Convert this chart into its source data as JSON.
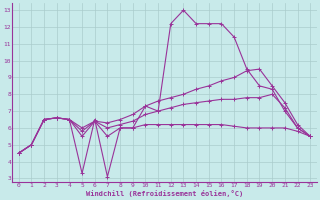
{
  "background_color": "#c8eaea",
  "grid_color": "#aacccc",
  "line_color": "#993399",
  "xlabel": "Windchill (Refroidissement éolien,°C)",
  "xlim": [
    -0.5,
    23.5
  ],
  "ylim": [
    2.8,
    13.4
  ],
  "xticks": [
    0,
    1,
    2,
    3,
    4,
    5,
    6,
    7,
    8,
    9,
    10,
    11,
    12,
    13,
    14,
    15,
    16,
    17,
    18,
    19,
    20,
    21,
    22,
    23
  ],
  "yticks": [
    3,
    4,
    5,
    6,
    7,
    8,
    9,
    10,
    11,
    12,
    13
  ],
  "line1_y": [
    4.5,
    5.0,
    6.5,
    6.6,
    6.5,
    3.3,
    6.5,
    3.1,
    6.0,
    6.0,
    7.3,
    7.0,
    12.2,
    13.0,
    12.2,
    12.2,
    12.2,
    11.4,
    9.5,
    8.5,
    8.3,
    7.0,
    6.0,
    5.5
  ],
  "line2_y": [
    4.5,
    5.0,
    6.5,
    6.6,
    6.5,
    5.5,
    6.4,
    5.5,
    6.0,
    6.0,
    6.2,
    6.2,
    6.2,
    6.2,
    6.2,
    6.2,
    6.2,
    6.1,
    6.0,
    6.0,
    6.0,
    6.0,
    5.8,
    5.5
  ],
  "line3_y": [
    4.5,
    5.0,
    6.5,
    6.6,
    6.5,
    5.8,
    6.4,
    6.0,
    6.2,
    6.4,
    6.8,
    7.0,
    7.2,
    7.4,
    7.5,
    7.6,
    7.7,
    7.7,
    7.8,
    7.8,
    8.0,
    7.2,
    6.0,
    5.5
  ],
  "line4_y": [
    4.5,
    5.0,
    6.5,
    6.6,
    6.5,
    6.0,
    6.4,
    6.3,
    6.5,
    6.8,
    7.3,
    7.6,
    7.8,
    8.0,
    8.3,
    8.5,
    8.8,
    9.0,
    9.4,
    9.5,
    8.5,
    7.5,
    6.2,
    5.5
  ]
}
